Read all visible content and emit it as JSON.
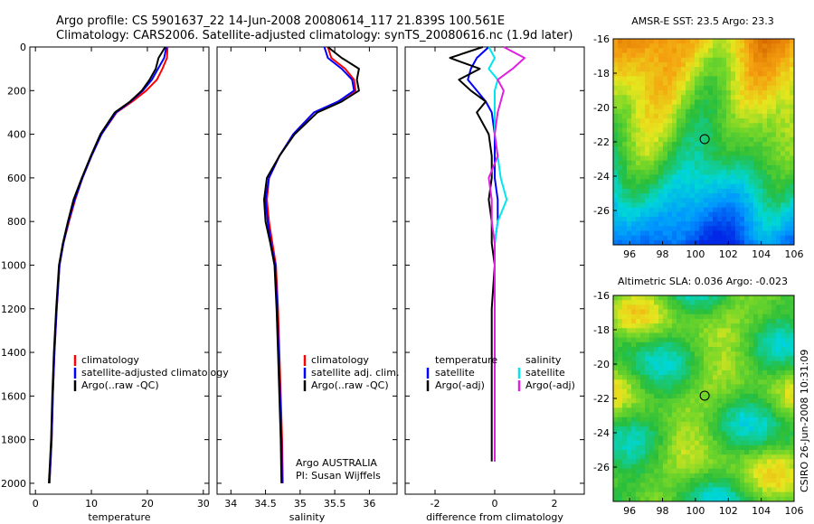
{
  "header": {
    "line1": "Argo profile: CS 5901637_22 14-Jun-2008 20080614_117 21.839S 100.561E",
    "line2": "Climatology: CARS2006. Satellite-adjusted climatology: synTS_20080616.nc (1.9d later)"
  },
  "colors": {
    "climatology": "#ff0000",
    "satellite": "#0000ff",
    "argo": "#000000",
    "salinity_satellite": "#00e5ee",
    "salinity_argo": "#e020e0"
  },
  "chart_data": [
    {
      "type": "line",
      "xlabel": "temperature",
      "xlim": [
        -1,
        31
      ],
      "ylim": [
        2050,
        0
      ],
      "xticks": [
        0,
        10,
        20,
        30
      ],
      "yticks": [
        0,
        200,
        400,
        600,
        800,
        1000,
        1200,
        1400,
        1600,
        1800,
        2000
      ],
      "series": [
        {
          "name": "climatology",
          "color": "#ff0000",
          "x": [
            23.6,
            23.5,
            22.7,
            21.7,
            19.8,
            17.3,
            14.5,
            11.8,
            10.0,
            8.4,
            7.1,
            6.0,
            5.0,
            4.3,
            3.8,
            3.4,
            3.1,
            2.9,
            2.7,
            2.5
          ],
          "y": [
            0,
            50,
            100,
            150,
            200,
            250,
            300,
            400,
            500,
            600,
            700,
            800,
            900,
            1000,
            1200,
            1400,
            1600,
            1800,
            1900,
            2000
          ]
        },
        {
          "name": "satellite-adjusted climatology",
          "color": "#0000ff",
          "x": [
            23.4,
            23.0,
            21.9,
            20.8,
            19.2,
            17.0,
            14.4,
            11.8,
            10.0,
            8.4,
            7.0,
            5.9,
            5.0,
            4.3,
            3.8,
            3.4,
            3.1,
            2.9,
            2.7,
            2.5
          ],
          "y": [
            0,
            50,
            100,
            150,
            200,
            250,
            300,
            400,
            500,
            600,
            700,
            800,
            900,
            1000,
            1200,
            1400,
            1600,
            1800,
            1900,
            2000
          ]
        },
        {
          "name": "Argo(..raw -QC)",
          "color": "#000000",
          "x": [
            23.2,
            22.0,
            21.5,
            20.4,
            19.0,
            16.9,
            14.2,
            11.6,
            9.9,
            8.3,
            6.8,
            5.8,
            4.9,
            4.2,
            3.7,
            3.3,
            3.0,
            2.8,
            2.6,
            2.4
          ],
          "y": [
            0,
            50,
            100,
            150,
            200,
            250,
            300,
            400,
            500,
            600,
            700,
            800,
            900,
            1000,
            1200,
            1400,
            1600,
            1800,
            1900,
            2000
          ]
        }
      ],
      "legend": [
        "climatology",
        "satellite-adjusted climatology",
        "Argo(..raw -QC)"
      ]
    },
    {
      "type": "line",
      "xlabel": "salinity",
      "xlim": [
        33.8,
        36.4
      ],
      "ylim": [
        2050,
        0
      ],
      "xticks": [
        34,
        34.5,
        35,
        35.5,
        36
      ],
      "series": [
        {
          "name": "climatology",
          "color": "#ff0000",
          "x": [
            35.4,
            35.45,
            35.65,
            35.78,
            35.8,
            35.55,
            35.2,
            34.9,
            34.7,
            34.55,
            34.52,
            34.55,
            34.6,
            34.65,
            34.68,
            34.7,
            34.72,
            34.74,
            34.75
          ],
          "y": [
            0,
            50,
            100,
            150,
            200,
            250,
            300,
            400,
            500,
            600,
            700,
            800,
            900,
            1000,
            1200,
            1400,
            1600,
            1800,
            2000
          ]
        },
        {
          "name": "satellite adj. clim.",
          "color": "#0000ff",
          "x": [
            35.35,
            35.4,
            35.6,
            35.75,
            35.78,
            35.55,
            35.2,
            34.9,
            34.7,
            34.55,
            34.5,
            34.53,
            34.58,
            34.64,
            34.67,
            34.69,
            34.71,
            34.73,
            34.74
          ],
          "y": [
            0,
            50,
            100,
            150,
            200,
            250,
            300,
            400,
            500,
            600,
            700,
            800,
            900,
            1000,
            1200,
            1400,
            1600,
            1800,
            2000
          ]
        },
        {
          "name": "Argo(..raw -QC)",
          "color": "#000000",
          "x": [
            35.4,
            35.6,
            35.85,
            35.82,
            35.85,
            35.6,
            35.25,
            34.92,
            34.7,
            34.52,
            34.48,
            34.5,
            34.57,
            34.63,
            34.66,
            34.68,
            34.7,
            34.72,
            34.73
          ],
          "y": [
            0,
            50,
            100,
            150,
            200,
            250,
            300,
            400,
            500,
            600,
            700,
            800,
            900,
            1000,
            1200,
            1400,
            1600,
            1800,
            2000
          ]
        }
      ],
      "legend": [
        "climatology",
        "satellite adj. clim.",
        "Argo(..raw -QC)"
      ],
      "annotation": [
        "Argo AUSTRALIA",
        "PI: Susan Wijffels"
      ]
    },
    {
      "type": "line",
      "xlabel": "difference from climatology",
      "xlim": [
        -3,
        3
      ],
      "ylim": [
        2050,
        0
      ],
      "xticks": [
        -2,
        0,
        2
      ],
      "series": [
        {
          "name": "temperature satellite",
          "color": "#0000ff",
          "x": [
            -0.2,
            -0.6,
            -0.8,
            -0.9,
            -0.6,
            -0.3,
            -0.1,
            0.0,
            0.0,
            0.0,
            0.1,
            0.1,
            0.0,
            0.0,
            0.0,
            0.0,
            0.0,
            0.0
          ],
          "y": [
            0,
            50,
            100,
            150,
            200,
            250,
            300,
            400,
            500,
            600,
            700,
            800,
            900,
            1000,
            1200,
            1400,
            1600,
            1900
          ]
        },
        {
          "name": "temperature Argo(-adj)",
          "color": "#000000",
          "x": [
            -0.4,
            -1.5,
            -0.5,
            -1.2,
            -0.8,
            -0.3,
            -0.6,
            -0.2,
            -0.1,
            -0.1,
            -0.2,
            -0.1,
            -0.1,
            0.0,
            -0.1,
            -0.1,
            -0.1,
            -0.1
          ],
          "y": [
            0,
            50,
            100,
            150,
            200,
            250,
            300,
            400,
            500,
            600,
            700,
            800,
            900,
            1000,
            1200,
            1400,
            1600,
            1900
          ]
        },
        {
          "name": "salinity satellite",
          "color": "#00e5ee",
          "x": [
            -0.2,
            0.0,
            -0.2,
            0.1,
            0.0,
            0.0,
            0.0,
            0.0,
            0.1,
            0.2,
            0.4,
            0.1,
            0.0,
            0.0,
            0.0,
            0.0,
            0.0,
            0.0
          ],
          "y": [
            0,
            50,
            100,
            150,
            200,
            250,
            300,
            400,
            500,
            600,
            700,
            800,
            900,
            1000,
            1200,
            1400,
            1600,
            1900
          ]
        },
        {
          "name": "salinity Argo(-adj)",
          "color": "#e020e0",
          "x": [
            0.3,
            1.0,
            0.6,
            0.1,
            0.3,
            0.2,
            0.1,
            0.0,
            0.1,
            -0.2,
            -0.1,
            -0.1,
            0.0,
            0.0,
            0.0,
            0.0,
            0.0,
            0.0
          ],
          "y": [
            0,
            50,
            100,
            150,
            200,
            250,
            300,
            400,
            500,
            600,
            700,
            800,
            900,
            1000,
            1200,
            1400,
            1600,
            1900
          ]
        }
      ],
      "legend": {
        "temperature": [
          "temperature",
          "satellite",
          "Argo(-adj)"
        ],
        "salinity": [
          "salinity",
          "satellite",
          "Argo(-adj)"
        ]
      }
    },
    {
      "type": "heatmap",
      "title": "AMSR-E SST: 23.5 Argo: 23.3",
      "xlim": [
        95,
        106
      ],
      "ylim": [
        -28,
        -16
      ],
      "xticks": [
        96,
        98,
        100,
        102,
        104,
        106
      ],
      "yticks": [
        -16,
        -18,
        -20,
        -22,
        -24,
        -26
      ],
      "marker": {
        "lon": 100.561,
        "lat": -21.839
      }
    },
    {
      "type": "heatmap",
      "title": "Altimetric SLA: 0.036 Argo: -0.023",
      "xlim": [
        95,
        106
      ],
      "ylim": [
        -28,
        -16
      ],
      "xticks": [
        96,
        98,
        100,
        102,
        104,
        106
      ],
      "yticks": [
        -16,
        -18,
        -20,
        -22,
        -24,
        -26
      ],
      "marker": {
        "lon": 100.561,
        "lat": -21.839
      }
    }
  ],
  "footer": {
    "credit": "CSIRO 26-Jun-2008 10:31:09"
  }
}
